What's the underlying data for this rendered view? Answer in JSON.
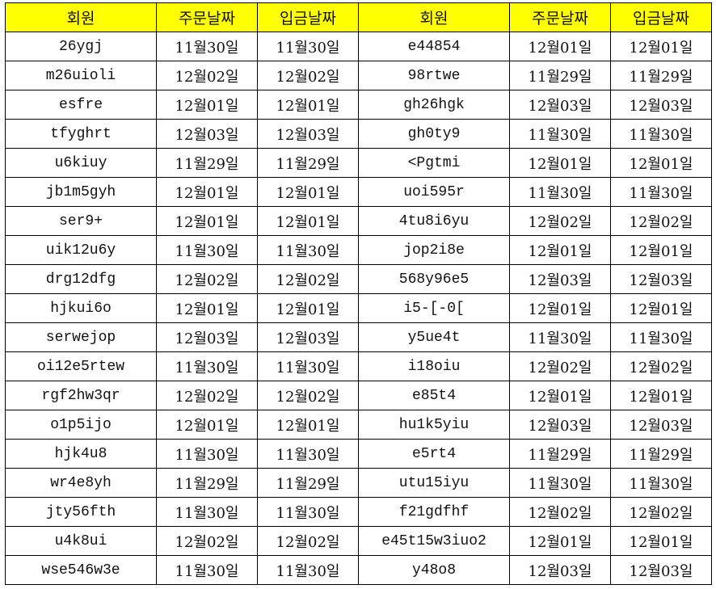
{
  "headers": [
    "회원",
    "주문날짜",
    "입금날짜",
    "회원",
    "주문날짜",
    "입금날짜"
  ],
  "header_color": "#ffff00",
  "rows": [
    [
      "26ygj",
      "11월30일",
      "11월30일",
      "e44854",
      "12월01일",
      "12월01일"
    ],
    [
      "m26uioli",
      "12월02일",
      "12월02일",
      "98rtwe",
      "11월29일",
      "11월29일"
    ],
    [
      "esfre",
      "12월01일",
      "12월01일",
      "gh26hgk",
      "12월03일",
      "12월03일"
    ],
    [
      "tfyghrt",
      "12월03일",
      "12월03일",
      "gh0ty9",
      "11월30일",
      "11월30일"
    ],
    [
      "u6kiuy",
      "11월29일",
      "11월29일",
      "<Pgtmi",
      "12월01일",
      "12월01일"
    ],
    [
      "jb1m5gyh",
      "12월01일",
      "12월01일",
      "uoi595r",
      "11월30일",
      "11월30일"
    ],
    [
      "ser9+",
      "12월01일",
      "12월01일",
      "4tu8i6yu",
      "12월02일",
      "12월02일"
    ],
    [
      "uik12u6y",
      "11월30일",
      "11월30일",
      "jop2i8e",
      "12월01일",
      "12월01일"
    ],
    [
      "drg12dfg",
      "12월02일",
      "12월02일",
      "568y96e5",
      "12월03일",
      "12월03일"
    ],
    [
      "hjkui6o",
      "12월01일",
      "12월01일",
      "i5-[-0[",
      "12월01일",
      "12월01일"
    ],
    [
      "serwejop",
      "12월03일",
      "12월03일",
      "y5ue4t",
      "11월30일",
      "11월30일"
    ],
    [
      "oi12e5rtew",
      "11월30일",
      "11월30일",
      "i18oiu",
      "12월02일",
      "12월02일"
    ],
    [
      "rgf2hw3qr",
      "12월02일",
      "12월02일",
      "e85t4",
      "12월01일",
      "12월01일"
    ],
    [
      "o1p5ijo",
      "12월01일",
      "12월01일",
      "hu1k5yiu",
      "12월03일",
      "12월03일"
    ],
    [
      "hjk4u8",
      "11월30일",
      "11월30일",
      "e5rt4",
      "11월29일",
      "11월29일"
    ],
    [
      "wr4e8yh",
      "11월29일",
      "11월29일",
      "utu15iyu",
      "11월30일",
      "11월30일"
    ],
    [
      "jty56fth",
      "11월30일",
      "11월30일",
      "f21gdfhf",
      "12월02일",
      "12월02일"
    ],
    [
      "u4k8ui",
      "12월02일",
      "12월02일",
      "e45t15w3iuo2",
      "12월01일",
      "12월01일"
    ],
    [
      "wse546w3e",
      "11월30일",
      "11월30일",
      "y48o8",
      "12월03일",
      "12월03일"
    ]
  ]
}
